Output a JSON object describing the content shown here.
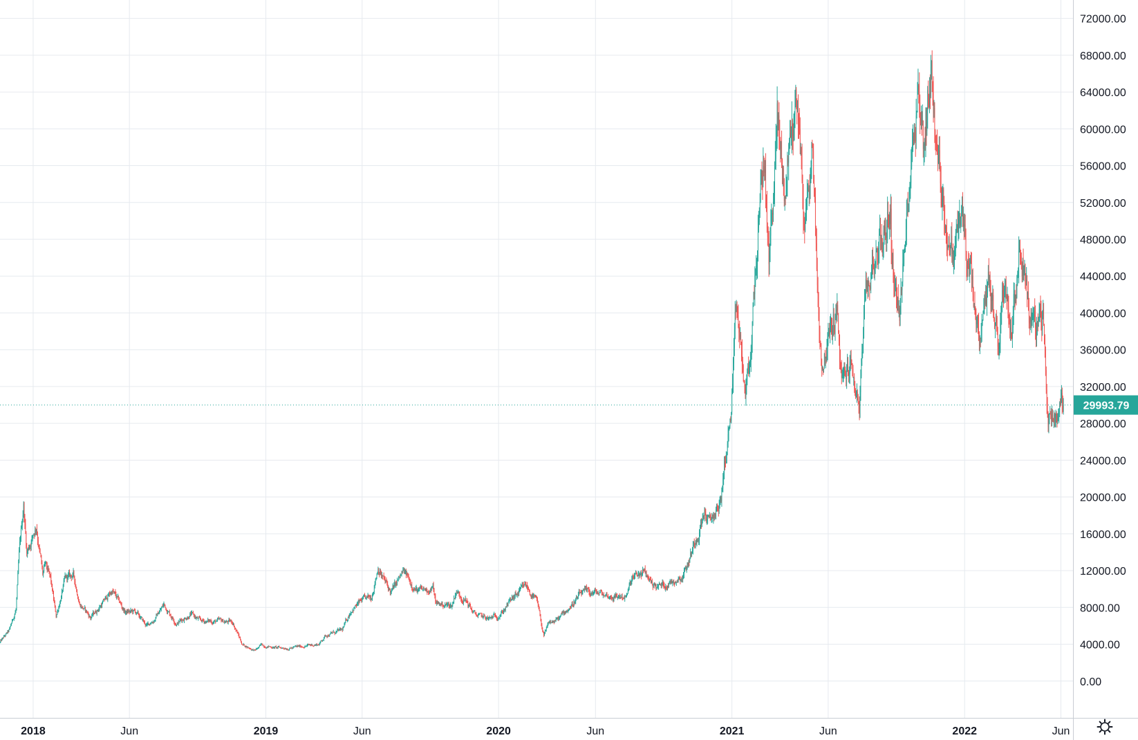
{
  "chart_data": {
    "type": "candlestick",
    "title": "",
    "y_axis_side": "right",
    "ylim": [
      -4000,
      74000
    ],
    "y_ticks": [
      "72000.00",
      "68000.00",
      "64000.00",
      "60000.00",
      "56000.00",
      "52000.00",
      "48000.00",
      "44000.00",
      "40000.00",
      "36000.00",
      "32000.00",
      "28000.00",
      "24000.00",
      "20000.00",
      "16000.00",
      "12000.00",
      "8000.00",
      "4000.00",
      "0.00"
    ],
    "y_tick_values": [
      72000,
      68000,
      64000,
      60000,
      56000,
      52000,
      48000,
      44000,
      40000,
      36000,
      32000,
      28000,
      24000,
      20000,
      16000,
      12000,
      8000,
      4000,
      0
    ],
    "xlim": [
      "2017-11-10",
      "2022-06-20"
    ],
    "x_ticks": [
      {
        "label": "2018",
        "date": "2018-01-01",
        "major": true
      },
      {
        "label": "Jun",
        "date": "2018-06-01",
        "major": false
      },
      {
        "label": "2019",
        "date": "2019-01-01",
        "major": true
      },
      {
        "label": "Jun",
        "date": "2019-06-01",
        "major": false
      },
      {
        "label": "2020",
        "date": "2020-01-01",
        "major": true
      },
      {
        "label": "Jun",
        "date": "2020-06-01",
        "major": false
      },
      {
        "label": "2021",
        "date": "2021-01-01",
        "major": true
      },
      {
        "label": "Jun",
        "date": "2021-06-01",
        "major": false
      },
      {
        "label": "2022",
        "date": "2022-01-01",
        "major": true
      },
      {
        "label": "Jun",
        "date": "2022-06-01",
        "major": false
      }
    ],
    "last_price": 29993.79,
    "last_price_label": "29993.79",
    "grid": true,
    "colors": {
      "up": "#26a69a",
      "down": "#ef5350",
      "grid": "#e6eaef",
      "axis": "#c8ccd3",
      "last_price": "#26a69a"
    },
    "price_path": [
      [
        "2017-11-10",
        4200
      ],
      [
        "2017-11-25",
        5500
      ],
      [
        "2017-12-05",
        7800
      ],
      [
        "2017-12-10",
        13500
      ],
      [
        "2017-12-17",
        19200
      ],
      [
        "2017-12-22",
        14000
      ],
      [
        "2017-12-28",
        15200
      ],
      [
        "2018-01-06",
        17000
      ],
      [
        "2018-01-16",
        11500
      ],
      [
        "2018-01-20",
        12500
      ],
      [
        "2018-01-28",
        11000
      ],
      [
        "2018-02-06",
        7000
      ],
      [
        "2018-02-20",
        11000
      ],
      [
        "2018-03-05",
        11500
      ],
      [
        "2018-03-15",
        8500
      ],
      [
        "2018-04-01",
        6900
      ],
      [
        "2018-04-12",
        7800
      ],
      [
        "2018-05-05",
        9800
      ],
      [
        "2018-05-25",
        7500
      ],
      [
        "2018-06-10",
        7500
      ],
      [
        "2018-06-28",
        6000
      ],
      [
        "2018-07-10",
        6700
      ],
      [
        "2018-07-25",
        8300
      ],
      [
        "2018-08-14",
        6300
      ],
      [
        "2018-09-05",
        7300
      ],
      [
        "2018-09-20",
        6500
      ],
      [
        "2018-10-15",
        6500
      ],
      [
        "2018-11-10",
        6400
      ],
      [
        "2018-11-15",
        5600
      ],
      [
        "2018-11-25",
        4000
      ],
      [
        "2018-12-15",
        3300
      ],
      [
        "2018-12-25",
        3900
      ],
      [
        "2019-01-20",
        3600
      ],
      [
        "2019-02-10",
        3600
      ],
      [
        "2019-03-01",
        3800
      ],
      [
        "2019-03-25",
        4000
      ],
      [
        "2019-04-05",
        5000
      ],
      [
        "2019-05-01",
        5500
      ],
      [
        "2019-05-15",
        7800
      ],
      [
        "2019-06-01",
        8700
      ],
      [
        "2019-06-15",
        9000
      ],
      [
        "2019-06-26",
        12500
      ],
      [
        "2019-07-05",
        11000
      ],
      [
        "2019-07-16",
        9600
      ],
      [
        "2019-08-05",
        11800
      ],
      [
        "2019-08-28",
        9700
      ],
      [
        "2019-09-20",
        10100
      ],
      [
        "2019-09-25",
        8400
      ],
      [
        "2019-10-20",
        8200
      ],
      [
        "2019-10-26",
        9800
      ],
      [
        "2019-11-10",
        8800
      ],
      [
        "2019-11-25",
        7200
      ],
      [
        "2019-12-18",
        6700
      ],
      [
        "2020-01-05",
        7400
      ],
      [
        "2020-01-20",
        8700
      ],
      [
        "2020-02-13",
        10300
      ],
      [
        "2020-03-01",
        8600
      ],
      [
        "2020-03-12",
        4900
      ],
      [
        "2020-03-20",
        6200
      ],
      [
        "2020-04-05",
        6800
      ],
      [
        "2020-04-30",
        8700
      ],
      [
        "2020-05-10",
        9500
      ],
      [
        "2020-06-01",
        9600
      ],
      [
        "2020-06-25",
        9200
      ],
      [
        "2020-07-20",
        9200
      ],
      [
        "2020-07-28",
        11000
      ],
      [
        "2020-08-15",
        11800
      ],
      [
        "2020-09-05",
        10200
      ],
      [
        "2020-09-25",
        10700
      ],
      [
        "2020-10-15",
        11500
      ],
      [
        "2020-10-25",
        13000
      ],
      [
        "2020-11-05",
        15500
      ],
      [
        "2020-11-20",
        18500
      ],
      [
        "2020-11-26",
        17000
      ],
      [
        "2020-12-15",
        19500
      ],
      [
        "2020-12-20",
        23500
      ],
      [
        "2020-12-31",
        29000
      ],
      [
        "2021-01-08",
        40000
      ],
      [
        "2021-01-15",
        36000
      ],
      [
        "2021-01-22",
        31000
      ],
      [
        "2021-01-29",
        34000
      ],
      [
        "2021-02-08",
        46000
      ],
      [
        "2021-02-21",
        57000
      ],
      [
        "2021-02-28",
        45000
      ],
      [
        "2021-03-13",
        61000
      ],
      [
        "2021-03-25",
        52500
      ],
      [
        "2021-04-02",
        59000
      ],
      [
        "2021-04-14",
        63500
      ],
      [
        "2021-04-25",
        49000
      ],
      [
        "2021-05-08",
        58000
      ],
      [
        "2021-05-12",
        49500
      ],
      [
        "2021-05-19",
        37000
      ],
      [
        "2021-05-23",
        34500
      ],
      [
        "2021-06-01",
        37000
      ],
      [
        "2021-06-15",
        40000
      ],
      [
        "2021-06-22",
        32000
      ],
      [
        "2021-07-05",
        34500
      ],
      [
        "2021-07-20",
        30000
      ],
      [
        "2021-07-28",
        40000
      ],
      [
        "2021-08-14",
        47000
      ],
      [
        "2021-08-30",
        48500
      ],
      [
        "2021-09-07",
        52000
      ],
      [
        "2021-09-08",
        46000
      ],
      [
        "2021-09-21",
        40500
      ],
      [
        "2021-10-01",
        48000
      ],
      [
        "2021-10-06",
        55000
      ],
      [
        "2021-10-20",
        65500
      ],
      [
        "2021-10-28",
        58000
      ],
      [
        "2021-11-10",
        67500
      ],
      [
        "2021-11-18",
        57000
      ],
      [
        "2021-11-26",
        54000
      ],
      [
        "2021-12-04",
        49000
      ],
      [
        "2021-12-14",
        46000
      ],
      [
        "2021-12-27",
        51000
      ],
      [
        "2022-01-05",
        46000
      ],
      [
        "2022-01-21",
        38000
      ],
      [
        "2022-01-24",
        35000
      ],
      [
        "2022-02-08",
        44000
      ],
      [
        "2022-02-24",
        36000
      ],
      [
        "2022-03-01",
        44000
      ],
      [
        "2022-03-15",
        39000
      ],
      [
        "2022-03-28",
        47500
      ],
      [
        "2022-04-06",
        45000
      ],
      [
        "2022-04-12",
        40000
      ],
      [
        "2022-04-26",
        38000
      ],
      [
        "2022-05-04",
        39500
      ],
      [
        "2022-05-10",
        31000
      ],
      [
        "2022-05-12",
        28000
      ],
      [
        "2022-05-20",
        29500
      ],
      [
        "2022-05-28",
        29000
      ],
      [
        "2022-06-01",
        31500
      ],
      [
        "2022-06-05",
        29993.79
      ]
    ]
  },
  "icons": {
    "settings": "gear-icon"
  }
}
